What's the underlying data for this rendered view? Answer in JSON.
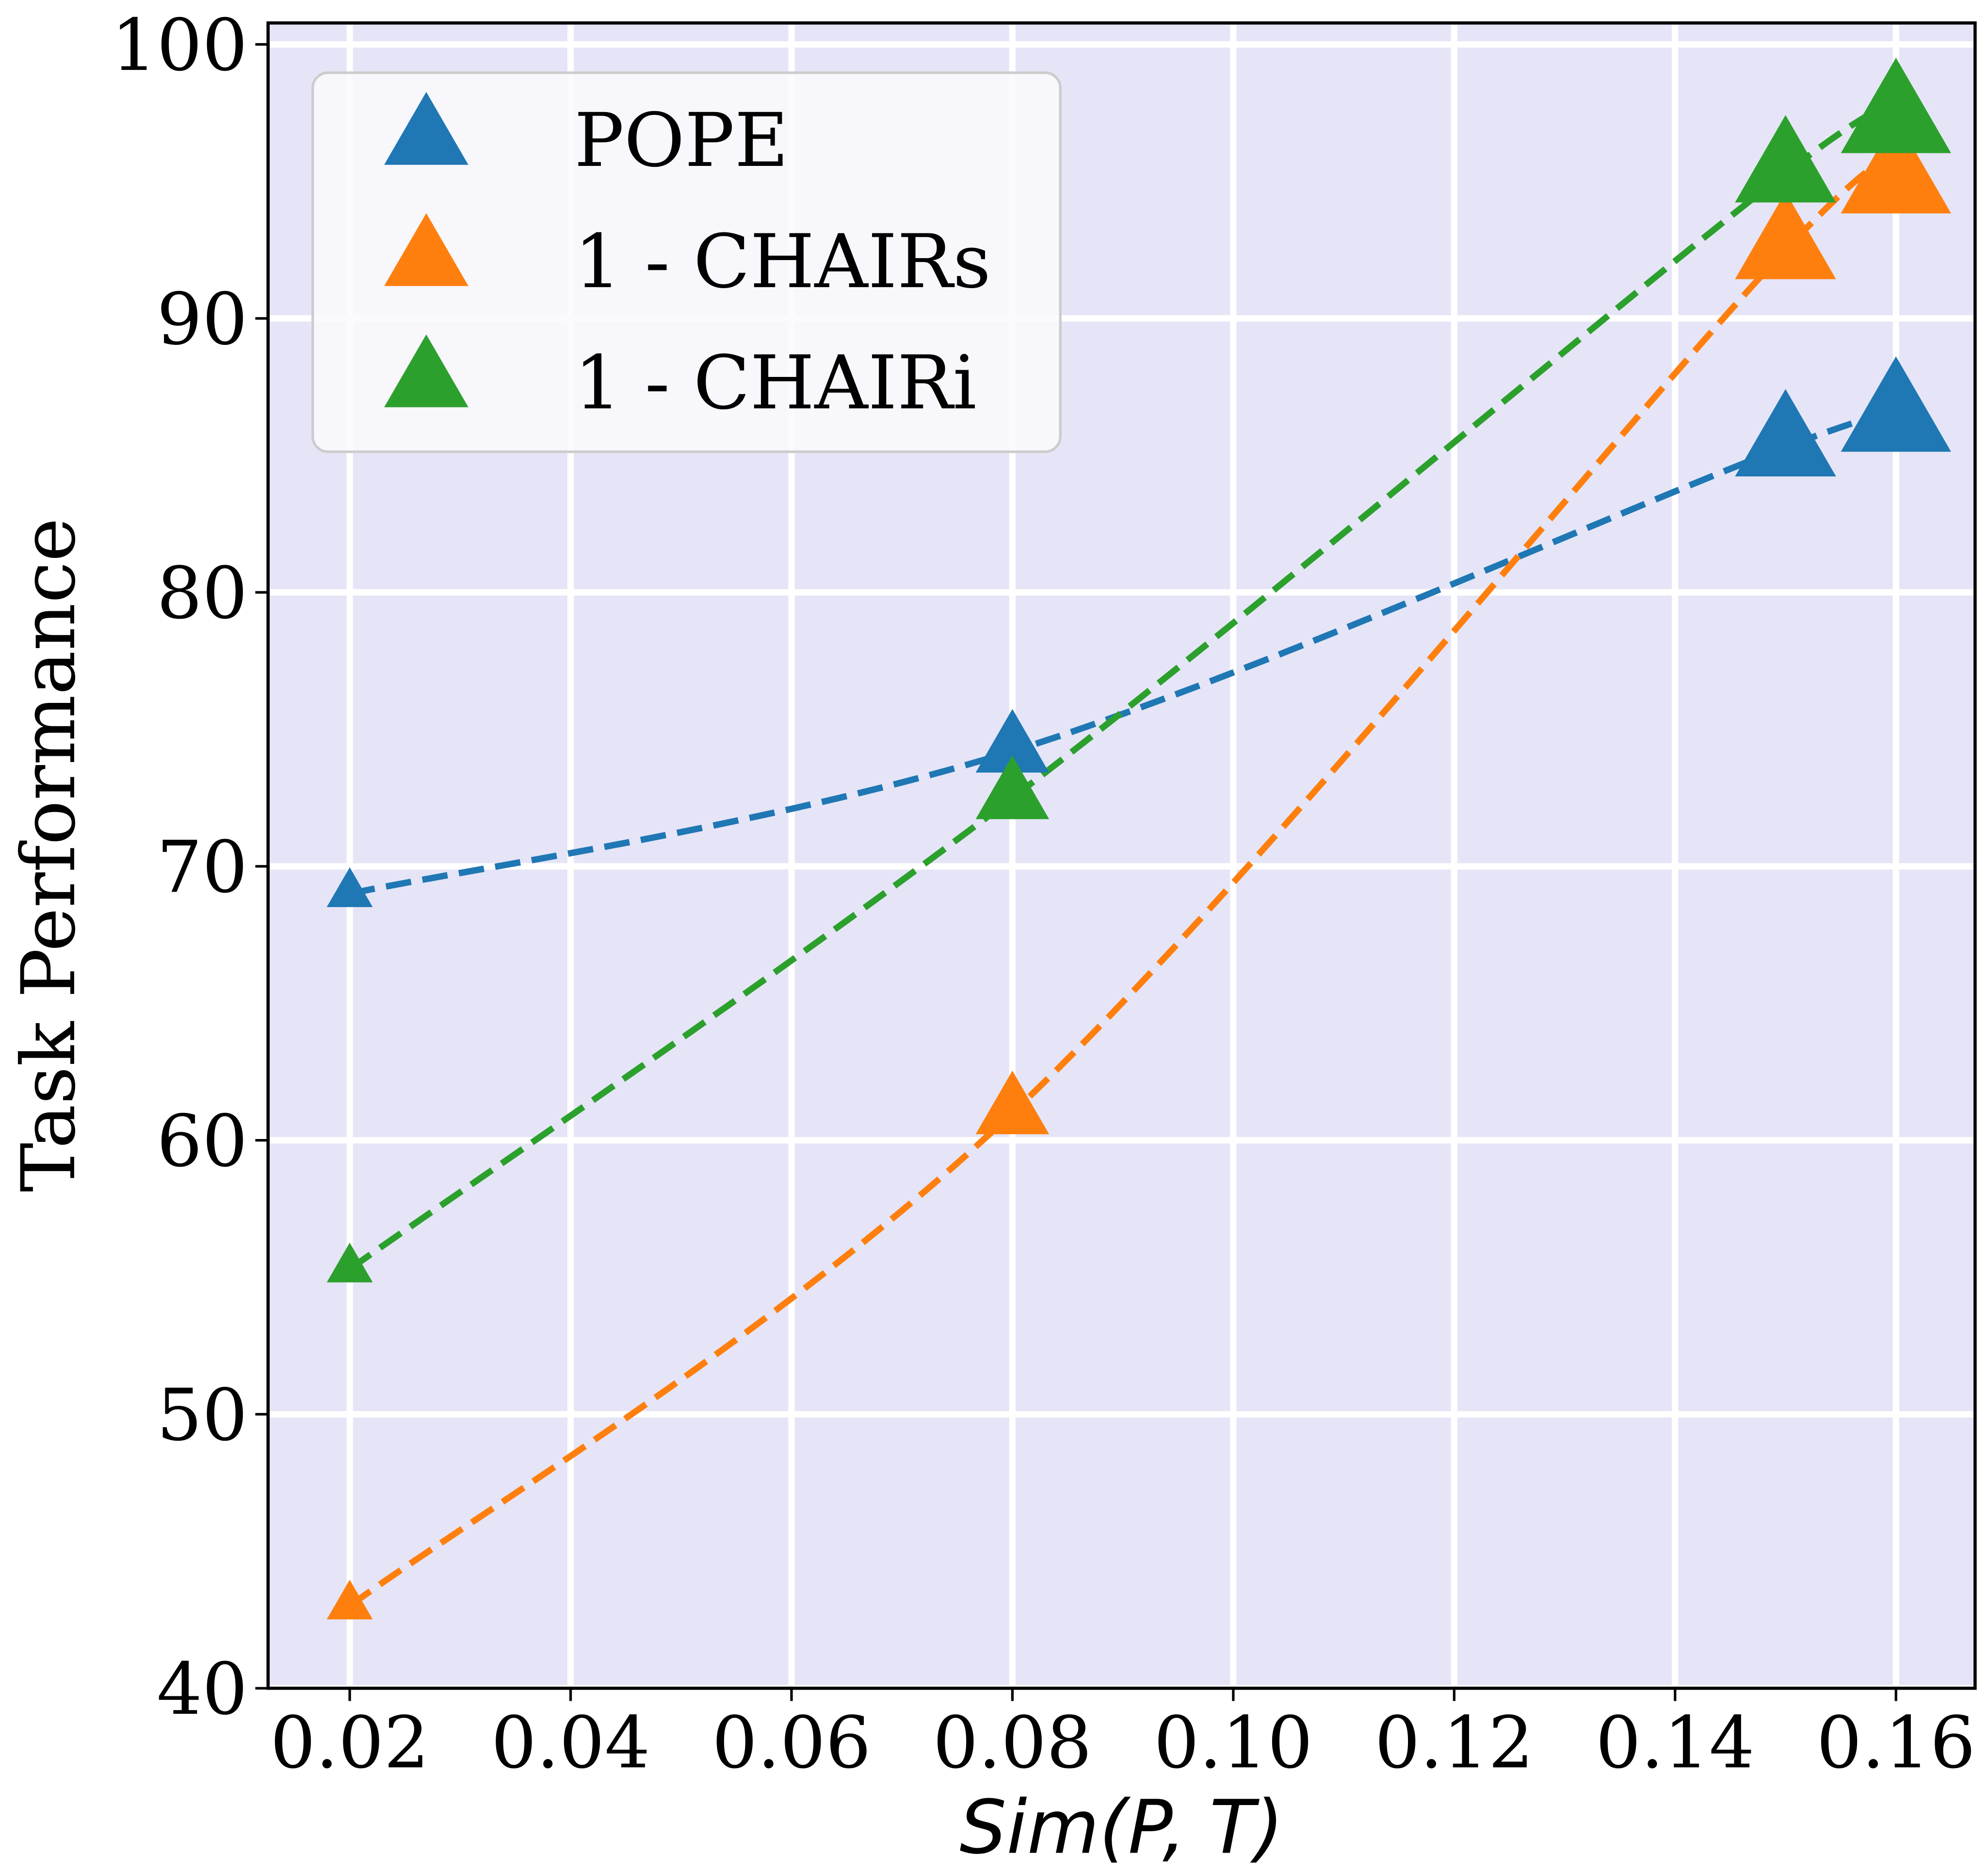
{
  "chart_data": {
    "type": "line",
    "title": "",
    "xlabel": "Sim(P, T)",
    "ylabel": "Task Performance",
    "xlim": [
      0.01,
      0.1675
    ],
    "ylim": [
      40,
      100
    ],
    "xticks": [
      "0.02",
      "0.04",
      "0.06",
      "0.08",
      "0.10",
      "0.12",
      "0.14",
      "0.16"
    ],
    "yticks": [
      "40",
      "50",
      "60",
      "70",
      "80",
      "90",
      "100"
    ],
    "grid": true,
    "legend_position": "top-left",
    "x": [
      0.02,
      0.08,
      0.15,
      0.16
    ],
    "marker_sizes": [
      1,
      1.6,
      2.2,
      2.4
    ],
    "series": [
      {
        "name": "POPE",
        "color": "#1f77b4",
        "values": [
          69.0,
          74.2,
          85.3,
          86.3
        ]
      },
      {
        "name": "1 - CHAIRs",
        "color": "#ff7f0e",
        "values": [
          43.0,
          61.0,
          92.5,
          95.0
        ]
      },
      {
        "name": "1 - CHAIRi",
        "color": "#2ca02c",
        "values": [
          55.3,
          72.5,
          95.3,
          97.2
        ]
      }
    ],
    "background": "#e5e5f7"
  }
}
